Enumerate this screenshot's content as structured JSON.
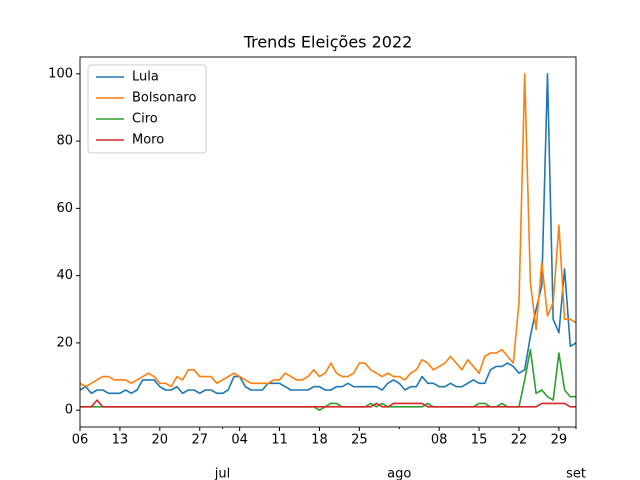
{
  "chart_data": {
    "type": "line",
    "title": "Trends Eleições 2022",
    "x": [
      "2022-06-06",
      "2022-06-07",
      "2022-06-08",
      "2022-06-09",
      "2022-06-10",
      "2022-06-11",
      "2022-06-12",
      "2022-06-13",
      "2022-06-14",
      "2022-06-15",
      "2022-06-16",
      "2022-06-17",
      "2022-06-18",
      "2022-06-19",
      "2022-06-20",
      "2022-06-21",
      "2022-06-22",
      "2022-06-23",
      "2022-06-24",
      "2022-06-25",
      "2022-06-26",
      "2022-06-27",
      "2022-06-28",
      "2022-06-29",
      "2022-06-30",
      "2022-07-01",
      "2022-07-02",
      "2022-07-03",
      "2022-07-04",
      "2022-07-05",
      "2022-07-06",
      "2022-07-07",
      "2022-07-08",
      "2022-07-09",
      "2022-07-10",
      "2022-07-11",
      "2022-07-12",
      "2022-07-13",
      "2022-07-14",
      "2022-07-15",
      "2022-07-16",
      "2022-07-17",
      "2022-07-18",
      "2022-07-19",
      "2022-07-20",
      "2022-07-21",
      "2022-07-22",
      "2022-07-23",
      "2022-07-24",
      "2022-07-25",
      "2022-07-26",
      "2022-07-27",
      "2022-07-28",
      "2022-07-29",
      "2022-07-30",
      "2022-07-31",
      "2022-08-01",
      "2022-08-02",
      "2022-08-03",
      "2022-08-04",
      "2022-08-05",
      "2022-08-06",
      "2022-08-07",
      "2022-08-08",
      "2022-08-09",
      "2022-08-10",
      "2022-08-11",
      "2022-08-12",
      "2022-08-13",
      "2022-08-14",
      "2022-08-15",
      "2022-08-16",
      "2022-08-17",
      "2022-08-18",
      "2022-08-19",
      "2022-08-20",
      "2022-08-21",
      "2022-08-22",
      "2022-08-23",
      "2022-08-24",
      "2022-08-25",
      "2022-08-26",
      "2022-08-27",
      "2022-08-28",
      "2022-08-29",
      "2022-08-30",
      "2022-08-31",
      "2022-09-01"
    ],
    "series": [
      {
        "name": "Lula",
        "color": "#1f77b4",
        "values": [
          6,
          7,
          5,
          6,
          6,
          5,
          5,
          5,
          6,
          5,
          6,
          9,
          9,
          9,
          7,
          6,
          6,
          7,
          5,
          6,
          6,
          5,
          6,
          6,
          5,
          5,
          6,
          10,
          10,
          7,
          6,
          6,
          6,
          8,
          8,
          8,
          7,
          6,
          6,
          6,
          6,
          7,
          7,
          6,
          6,
          7,
          7,
          8,
          7,
          7,
          7,
          7,
          7,
          6,
          8,
          9,
          8,
          6,
          7,
          7,
          10,
          8,
          8,
          7,
          7,
          8,
          7,
          7,
          8,
          9,
          8,
          8,
          12,
          13,
          13,
          14,
          13,
          11,
          12,
          22,
          30,
          37,
          100,
          27,
          23,
          42,
          19,
          20
        ]
      },
      {
        "name": "Bolsonaro",
        "color": "#ff7f0e",
        "values": [
          8,
          7,
          8,
          9,
          10,
          10,
          9,
          9,
          9,
          8,
          9,
          10,
          11,
          10,
          8,
          8,
          7,
          10,
          9,
          12,
          12,
          10,
          10,
          10,
          8,
          9,
          10,
          11,
          10,
          9,
          8,
          8,
          8,
          8,
          9,
          9,
          11,
          10,
          9,
          9,
          10,
          12,
          10,
          11,
          14,
          11,
          10,
          10,
          11,
          14,
          14,
          12,
          11,
          10,
          11,
          10,
          10,
          9,
          11,
          12,
          15,
          14,
          12,
          13,
          14,
          16,
          14,
          12,
          15,
          13,
          11,
          16,
          17,
          17,
          18,
          16,
          14,
          32,
          100,
          38,
          24,
          44,
          28,
          32,
          55,
          27,
          27,
          26
        ]
      },
      {
        "name": "Ciro",
        "color": "#2ca02c",
        "values": [
          1,
          1,
          1,
          1,
          1,
          1,
          1,
          1,
          1,
          1,
          1,
          1,
          1,
          1,
          1,
          1,
          1,
          1,
          1,
          1,
          1,
          1,
          1,
          1,
          1,
          1,
          1,
          1,
          1,
          1,
          1,
          1,
          1,
          1,
          1,
          1,
          1,
          1,
          1,
          1,
          1,
          1,
          0,
          1,
          2,
          2,
          1,
          1,
          1,
          1,
          1,
          2,
          1,
          2,
          1,
          1,
          1,
          1,
          1,
          1,
          1,
          2,
          1,
          1,
          1,
          1,
          1,
          1,
          1,
          1,
          2,
          2,
          1,
          1,
          2,
          1,
          1,
          1,
          9,
          18,
          5,
          6,
          4,
          3,
          17,
          6,
          4,
          4
        ]
      },
      {
        "name": "Moro",
        "color": "#d62728",
        "values": [
          1,
          1,
          1,
          3,
          1,
          1,
          1,
          1,
          1,
          1,
          1,
          1,
          1,
          1,
          1,
          1,
          1,
          1,
          1,
          1,
          1,
          1,
          1,
          1,
          1,
          1,
          1,
          1,
          1,
          1,
          1,
          1,
          1,
          1,
          1,
          1,
          1,
          1,
          1,
          1,
          1,
          1,
          1,
          1,
          1,
          1,
          1,
          1,
          1,
          1,
          1,
          1,
          2,
          1,
          1,
          2,
          2,
          2,
          2,
          2,
          2,
          1,
          1,
          1,
          1,
          1,
          1,
          1,
          1,
          1,
          1,
          1,
          1,
          1,
          1,
          1,
          1,
          1,
          1,
          1,
          1,
          2,
          2,
          2,
          2,
          2,
          1,
          1
        ]
      }
    ],
    "xlim": [
      "2022-06-06",
      "2022-09-01"
    ],
    "xticks": [
      {
        "value": "2022-06-06",
        "label": "06"
      },
      {
        "value": "2022-06-13",
        "label": "13"
      },
      {
        "value": "2022-06-20",
        "label": "20"
      },
      {
        "value": "2022-06-27",
        "label": "27"
      },
      {
        "value": "2022-07-04",
        "label": "04"
      },
      {
        "value": "2022-07-11",
        "label": "11"
      },
      {
        "value": "2022-07-18",
        "label": "18"
      },
      {
        "value": "2022-07-25",
        "label": "25"
      },
      {
        "value": "2022-08-08",
        "label": "08"
      },
      {
        "value": "2022-08-15",
        "label": "15"
      },
      {
        "value": "2022-08-22",
        "label": "22"
      },
      {
        "value": "2022-08-29",
        "label": "29"
      }
    ],
    "month_ticks": [
      {
        "value": "2022-07-01",
        "label": "jul"
      },
      {
        "value": "2022-08-01",
        "label": "ago"
      },
      {
        "value": "2022-09-01",
        "label": "set"
      }
    ],
    "ylim": [
      -5,
      105
    ],
    "yticks": [
      0,
      20,
      40,
      60,
      80,
      100
    ],
    "legend": "upper left"
  }
}
